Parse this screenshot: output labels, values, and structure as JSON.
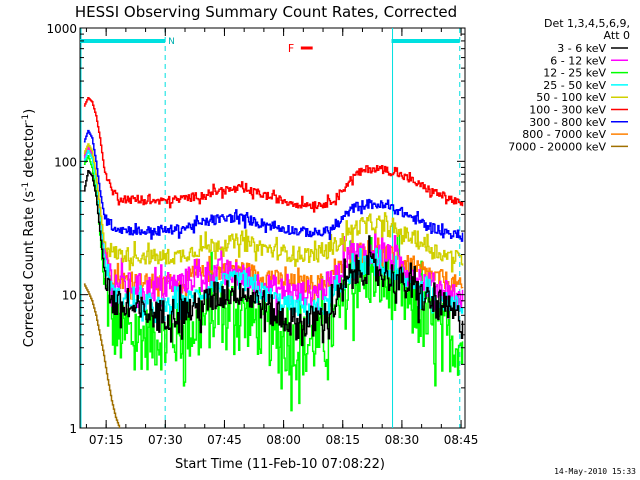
{
  "chart_data": {
    "type": "line",
    "title": "HESSI Observing Summary Count Rates, Corrected",
    "xlabel": "Start Time (11-Feb-10 07:08:22)",
    "ylabel_main": "Corrected Count Rate (s",
    "ylabel_sup1": "-1",
    "ylabel_mid": " detector",
    "ylabel_sup2": "-1",
    "ylabel_end": ")",
    "y_scale": "log",
    "ylim": [
      1,
      1000
    ],
    "xlim": [
      "07:08:22",
      "08:46:00"
    ],
    "x_ticks": [
      {
        "t": "07:15",
        "m": 6.63
      },
      {
        "t": "07:30",
        "m": 21.63
      },
      {
        "t": "07:45",
        "m": 36.63
      },
      {
        "t": "08:00",
        "m": 51.63
      },
      {
        "t": "08:15",
        "m": 66.63
      },
      {
        "t": "08:30",
        "m": 81.63
      },
      {
        "t": "08:45",
        "m": 96.63
      }
    ],
    "y_ticks": [
      {
        "label": "1",
        "v": 1
      },
      {
        "label": "10",
        "v": 10
      },
      {
        "label": "100",
        "v": 100
      },
      {
        "label": "1000",
        "v": 1000
      }
    ],
    "legend_header_1": "Det 1,3,4,5,6,9,",
    "legend_header_2": "Att 0",
    "legend_position": "outside-right",
    "x_unit": "minutes after 07:08:22",
    "series": [
      {
        "name": "3 - 6 keV",
        "color": "#000000",
        "noise": 0.12,
        "x": [
          1,
          2,
          3,
          4,
          5,
          6,
          8,
          10,
          15,
          20,
          25,
          30,
          35,
          40,
          45,
          50,
          55,
          60,
          63,
          66,
          68,
          70,
          73,
          76,
          80,
          84,
          88,
          92,
          95,
          97
        ],
        "y": [
          60,
          85,
          78,
          55,
          30,
          16,
          9,
          8,
          7.5,
          7,
          7.5,
          8,
          10,
          11,
          9,
          7,
          6,
          6.5,
          7,
          10,
          13,
          15,
          16,
          15,
          13,
          11,
          9,
          8,
          7,
          6
        ]
      },
      {
        "name": "6 - 12 keV",
        "color": "#ff00ff",
        "noise": 0.1,
        "x": [
          1,
          2,
          3,
          4,
          5,
          6,
          8,
          10,
          15,
          20,
          25,
          30,
          35,
          40,
          45,
          50,
          55,
          60,
          63,
          66,
          68,
          70,
          73,
          76,
          80,
          84,
          88,
          92,
          95,
          97
        ],
        "y": [
          105,
          130,
          115,
          80,
          45,
          22,
          13,
          12,
          11.5,
          11,
          12,
          14,
          15,
          14,
          12,
          11,
          10,
          10.5,
          12,
          15,
          22,
          20,
          21,
          20,
          18,
          15,
          12,
          11,
          10,
          9
        ]
      },
      {
        "name": "12 - 25 keV",
        "color": "#00ff00",
        "noise": 0.25,
        "x": [
          1,
          2,
          3,
          4,
          5,
          6,
          8,
          10,
          15,
          20,
          25,
          30,
          35,
          40,
          45,
          50,
          55,
          60,
          63,
          66,
          68,
          70,
          73,
          76,
          80,
          84,
          88,
          92,
          95,
          97
        ],
        "y": [
          95,
          110,
          90,
          60,
          28,
          12,
          6,
          5,
          4.8,
          4.8,
          5,
          6,
          7.5,
          8,
          6,
          4.5,
          4,
          4.5,
          5,
          8,
          11,
          13,
          14,
          13,
          11,
          8,
          6,
          5,
          4.5,
          4
        ]
      },
      {
        "name": "25 - 50 keV",
        "color": "#00ffff",
        "noise": 0.07,
        "x": [
          1,
          2,
          3,
          4,
          5,
          6,
          8,
          10,
          15,
          20,
          25,
          30,
          35,
          40,
          45,
          50,
          55,
          60,
          63,
          66,
          68,
          70,
          73,
          76,
          80,
          84,
          88,
          92,
          95,
          97
        ],
        "y": [
          100,
          120,
          105,
          75,
          40,
          20,
          10.5,
          9.5,
          8.5,
          8,
          8.5,
          10,
          12,
          13,
          11,
          9,
          8,
          8,
          8.5,
          11,
          14,
          16,
          17,
          16,
          14,
          12,
          10,
          9,
          8.5,
          8
        ]
      },
      {
        "name": "50 - 100 keV",
        "color": "#d0d000",
        "noise": 0.06,
        "x": [
          1,
          2,
          3,
          4,
          5,
          6,
          8,
          10,
          15,
          20,
          25,
          30,
          35,
          40,
          45,
          50,
          55,
          60,
          63,
          66,
          68,
          70,
          73,
          76,
          80,
          84,
          88,
          92,
          95,
          97
        ],
        "y": [
          115,
          135,
          120,
          80,
          45,
          25,
          21,
          20,
          19.5,
          19,
          19.5,
          22,
          24,
          25,
          23,
          21,
          20,
          20,
          22,
          25,
          29,
          32,
          34,
          33,
          30,
          27,
          23,
          20,
          19,
          18
        ]
      },
      {
        "name": "100 - 300 keV",
        "color": "#ff0000",
        "noise": 0.03,
        "x": [
          1,
          2,
          3,
          4,
          5,
          6,
          8,
          10,
          15,
          20,
          25,
          30,
          35,
          40,
          45,
          50,
          55,
          60,
          63,
          66,
          68,
          70,
          73,
          76,
          80,
          84,
          88,
          92,
          95,
          97
        ],
        "y": [
          260,
          300,
          280,
          220,
          150,
          90,
          60,
          53,
          51,
          50,
          52,
          55,
          60,
          62,
          58,
          52,
          48,
          47,
          49,
          58,
          70,
          80,
          88,
          88,
          82,
          72,
          62,
          55,
          50,
          47
        ]
      },
      {
        "name": "300 - 800 keV",
        "color": "#0000ff",
        "noise": 0.035,
        "x": [
          1,
          2,
          3,
          4,
          5,
          6,
          8,
          10,
          15,
          20,
          25,
          30,
          35,
          40,
          45,
          50,
          55,
          60,
          63,
          66,
          68,
          70,
          73,
          76,
          80,
          84,
          88,
          92,
          95,
          97
        ],
        "y": [
          140,
          170,
          150,
          100,
          60,
          40,
          33,
          31,
          30,
          30,
          31,
          34,
          37,
          38,
          35,
          32,
          30,
          29,
          30,
          35,
          42,
          46,
          48,
          47,
          44,
          38,
          33,
          30,
          28,
          27
        ]
      },
      {
        "name": "800 - 7000 keV",
        "color": "#ff8000",
        "noise": 0.07,
        "x": [
          1,
          2,
          3,
          4,
          5,
          6,
          8,
          10,
          15,
          20,
          25,
          30,
          35,
          40,
          45,
          50,
          55,
          60,
          63,
          66,
          68,
          70,
          73,
          76,
          80,
          84,
          88,
          92,
          95,
          97
        ],
        "y": [
          110,
          125,
          110,
          75,
          40,
          22,
          14,
          13,
          12.5,
          12,
          12.5,
          14,
          15,
          16,
          14,
          13,
          12,
          12,
          13,
          16,
          19,
          21,
          22,
          21,
          19,
          16,
          14,
          13,
          12,
          11
        ]
      },
      {
        "name": "7000 - 20000 keV",
        "color": "#a07000",
        "noise": 0,
        "x": [
          1,
          2,
          3,
          4,
          5,
          6,
          7,
          8,
          9,
          10
        ],
        "y": [
          12,
          10.5,
          9,
          7,
          5,
          3.5,
          2.3,
          1.6,
          1.2,
          1
        ]
      }
    ],
    "annotations": {
      "n_label": "N",
      "f_label": "F",
      "night_intervals": [
        [
          0,
          21.6
        ],
        [
          79.0,
          96.3
        ]
      ],
      "vlines_dashed": [
        21.6,
        96.3
      ],
      "vlines_solid": [
        0,
        79.0
      ],
      "flare_interval": [
        56,
        59
      ],
      "colors": {
        "night": "#00e0e0",
        "flare": "#ff0000"
      }
    }
  },
  "footer": {
    "timestamp": "14-May-2010 15:33"
  }
}
